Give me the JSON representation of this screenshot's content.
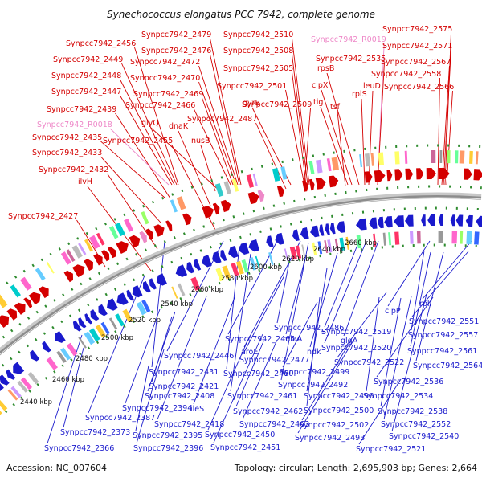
{
  "title": "Synechococcus elongatus PCC 7942, complete genome",
  "footer": {
    "accession": "Accession: NC_007604",
    "summary": "Topology: circular; Length: 2,695,903 bp; Genes: 2,664"
  },
  "colors": {
    "forward": "#d40000",
    "reverse": "#1a1acc",
    "rna": "#ee88c8",
    "backbone": "#8c8c8c",
    "track_dots": "#2e8b2e"
  },
  "ticks": [
    "2440 kbp",
    "2460 kbp",
    "2480 kbp",
    "2500 kbp",
    "2520 kbp",
    "2540 kbp",
    "2560 kbp",
    "2580 kbp",
    "2600 kbp",
    "2620 kbp",
    "2640 kbp",
    "2660 kbp"
  ],
  "top_labels": [
    {
      "text": "Synpcc7942_2456",
      "kind": "fwd"
    },
    {
      "text": "Synpcc7942_2449",
      "kind": "fwd"
    },
    {
      "text": "Synpcc7942_2448",
      "kind": "fwd"
    },
    {
      "text": "Synpcc7942_2447",
      "kind": "fwd"
    },
    {
      "text": "Synpcc7942_2439",
      "kind": "fwd"
    },
    {
      "text": "Synpcc7942_R0018",
      "kind": "rna"
    },
    {
      "text": "Synpcc7942_2435",
      "kind": "fwd"
    },
    {
      "text": "Synpcc7942_2433",
      "kind": "fwd"
    },
    {
      "text": "Synpcc7942_2432",
      "kind": "fwd"
    },
    {
      "text": "ilvH",
      "kind": "fwd"
    },
    {
      "text": "Synpcc7942_2427",
      "kind": "fwd"
    },
    {
      "text": "Synpcc7942_2479",
      "kind": "fwd"
    },
    {
      "text": "Synpcc7942_2476",
      "kind": "fwd"
    },
    {
      "text": "Synpcc7942_2472",
      "kind": "fwd"
    },
    {
      "text": "Synpcc7942_2470",
      "kind": "fwd"
    },
    {
      "text": "Synpcc7942_2469",
      "kind": "fwd"
    },
    {
      "text": "Synpcc7942_2466",
      "kind": "fwd"
    },
    {
      "text": "glyQ",
      "kind": "fwd"
    },
    {
      "text": "dnaK",
      "kind": "fwd"
    },
    {
      "text": "Synpcc7942_2455",
      "kind": "fwd"
    },
    {
      "text": "nusB",
      "kind": "fwd"
    },
    {
      "text": "Synpcc7942_2510",
      "kind": "fwd"
    },
    {
      "text": "Synpcc7942_2508",
      "kind": "fwd"
    },
    {
      "text": "Synpcc7942_2505",
      "kind": "fwd"
    },
    {
      "text": "Synpcc7942_2501",
      "kind": "fwd"
    },
    {
      "text": "gyrB",
      "kind": "fwd"
    },
    {
      "text": "Synpcc7942_2509",
      "kind": "fwd"
    },
    {
      "text": "Synpcc7942_2487",
      "kind": "fwd"
    },
    {
      "text": "Synpcc7942_R0019",
      "kind": "rna"
    },
    {
      "text": "Synpcc7942_2535",
      "kind": "fwd"
    },
    {
      "text": "rpsB",
      "kind": "fwd"
    },
    {
      "text": "clpX",
      "kind": "fwd"
    },
    {
      "text": "tig",
      "kind": "fwd"
    },
    {
      "text": "tsf",
      "kind": "fwd"
    },
    {
      "text": "rplS",
      "kind": "fwd"
    },
    {
      "text": "leuD",
      "kind": "fwd"
    },
    {
      "text": "Synpcc7942_2575",
      "kind": "fwd"
    },
    {
      "text": "Synpcc7942_2571",
      "kind": "fwd"
    },
    {
      "text": "Synpcc7942_2567",
      "kind": "fwd"
    },
    {
      "text": "Synpcc7942_2558",
      "kind": "fwd"
    },
    {
      "text": "Synpcc7942_2566",
      "kind": "fwd"
    }
  ],
  "bottom_labels": [
    "Synpcc7942_2486",
    "miaA",
    "ndk",
    "glgA",
    "clpP",
    "rplI",
    "Synpcc7942_2551",
    "Synpcc7942_2557",
    "Synpcc7942_2561",
    "Synpcc7942_2564",
    "Synpcc7942_2519",
    "Synpcc7942_2520",
    "Synpcc7942_2522",
    "Synpcc7942_2536",
    "Synpcc7942_2534",
    "Synpcc7942_2538",
    "Synpcc7942_2552",
    "Synpcc7942_2540",
    "Synpcc7942_2521",
    "Synpcc7942_2502",
    "Synpcc7942_2493",
    "Synpcc7942_2500",
    "Synpcc7942_2496",
    "Synpcc7942_2492",
    "Synpcc7942_2499",
    "Synpcc7942_2477",
    "Synpcc7942_2465",
    "aroE",
    "Synpcc7942_2460",
    "Synpcc7942_2461",
    "Synpcc7942_2462",
    "Synpcc7942_2463",
    "Synpcc7942_2450",
    "Synpcc7942_2451",
    "Synpcc7942_2446",
    "Synpcc7942_2431",
    "Synpcc7942_2421",
    "Synpcc7942_2408",
    "Synpcc7942_2394",
    "ileS",
    "Synpcc7942_2418",
    "Synpcc7942_2387",
    "Synpcc7942_2395",
    "Synpcc7942_2373",
    "Synpcc7942_2396",
    "Synpcc7942_2366"
  ]
}
